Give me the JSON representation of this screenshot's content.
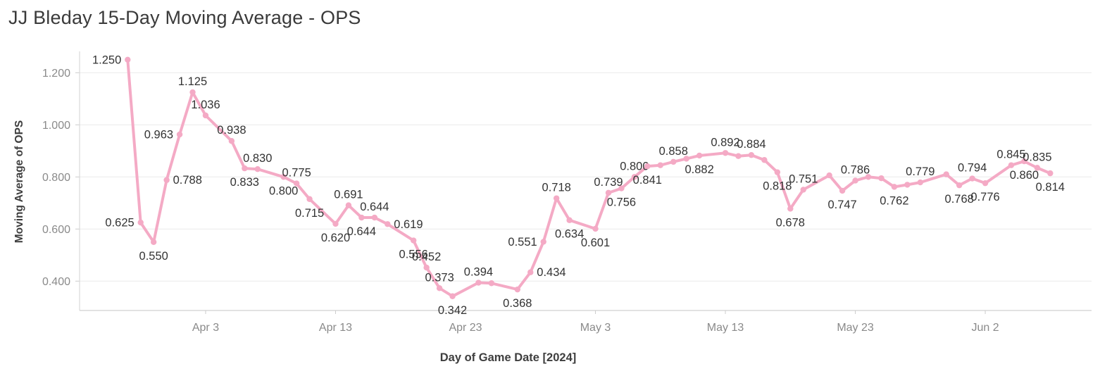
{
  "title": "JJ Bleday 15-Day Moving Average - OPS",
  "chart_data": {
    "type": "line",
    "title": "JJ Bleday 15-Day Moving Average - OPS",
    "xlabel": "Day of Game Date [2024]",
    "ylabel": "Moving Average of OPS",
    "legend": "none",
    "grid": "horizontal",
    "x_domain_days": [
      -3.7,
      74.18
    ],
    "y_domain": [
      0.2873,
      1.2765
    ],
    "colors": {
      "series": "#f4aac5",
      "marker": "#f4aac5",
      "data_label": "#333333",
      "tick_text": "#8a8a8a",
      "axis_title": "#3e3e3e",
      "chart_title": "#3a3a3a",
      "grid": "#ededed",
      "axis_line": "#d8d8d8",
      "tick_mark": "#cccccc"
    },
    "y_ticks": [
      {
        "value": 0.4,
        "label": "0.400"
      },
      {
        "value": 0.6,
        "label": "0.600"
      },
      {
        "value": 0.8,
        "label": "0.800"
      },
      {
        "value": 1.0,
        "label": "1.000"
      },
      {
        "value": 1.2,
        "label": "1.200"
      }
    ],
    "x_ticks": [
      {
        "day": 6,
        "label": "Apr 3"
      },
      {
        "day": 16,
        "label": "Apr 13"
      },
      {
        "day": 26,
        "label": "Apr 23"
      },
      {
        "day": 36,
        "label": "May 3"
      },
      {
        "day": 46,
        "label": "May 13"
      },
      {
        "day": 56,
        "label": "May 23"
      },
      {
        "day": 66,
        "label": "Jun 2"
      }
    ],
    "points": [
      {
        "day": 0,
        "date": "Mar 28",
        "value": 1.25,
        "label": "1.250",
        "label_pos": "left"
      },
      {
        "day": 1,
        "date": "Mar 29",
        "value": 0.625,
        "label": "0.625",
        "label_pos": "left"
      },
      {
        "day": 2,
        "date": "Mar 30",
        "value": 0.55,
        "label": "0.550",
        "label_pos": "below"
      },
      {
        "day": 3,
        "date": "Mar 31",
        "value": 0.788,
        "label": "0.788",
        "label_pos": "right"
      },
      {
        "day": 4,
        "date": "Apr 1",
        "value": 0.963,
        "label": "0.963",
        "label_pos": "left"
      },
      {
        "day": 5,
        "date": "Apr 2",
        "value": 1.125,
        "label": "1.125",
        "label_pos": "above"
      },
      {
        "day": 6,
        "date": "Apr 3",
        "value": 1.036,
        "label": "1.036",
        "label_pos": "above"
      },
      {
        "day": 8,
        "date": "Apr 5",
        "value": 0.938,
        "label": "0.938",
        "label_pos": "above"
      },
      {
        "day": 9,
        "date": "Apr 6",
        "value": 0.833,
        "label": "0.833",
        "label_pos": "below"
      },
      {
        "day": 10,
        "date": "Apr 7",
        "value": 0.83,
        "label": "0.830",
        "label_pos": "above"
      },
      {
        "day": 12,
        "date": "Apr 9",
        "value": 0.8,
        "label": "0.800",
        "label_pos": "below"
      },
      {
        "day": 13,
        "date": "Apr 10",
        "value": 0.775,
        "label": "0.775",
        "label_pos": "above"
      },
      {
        "day": 14,
        "date": "Apr 11",
        "value": 0.715,
        "label": "0.715",
        "label_pos": "below"
      },
      {
        "day": 16,
        "date": "Apr 13",
        "value": 0.62,
        "label": "0.620",
        "label_pos": "below"
      },
      {
        "day": 17,
        "date": "Apr 14",
        "value": 0.691,
        "label": "0.691",
        "label_pos": "above"
      },
      {
        "day": 18,
        "date": "Apr 15",
        "value": 0.644,
        "label": "0.644",
        "label_pos": "below"
      },
      {
        "day": 19,
        "date": "Apr 16",
        "value": 0.644,
        "label": "0.644",
        "label_pos": "above"
      },
      {
        "day": 20,
        "date": "Apr 17",
        "value": 0.619,
        "label": "0.619",
        "label_pos": "right"
      },
      {
        "day": 22,
        "date": "Apr 19",
        "value": 0.556,
        "label": "0.556",
        "label_pos": "below"
      },
      {
        "day": 23,
        "date": "Apr 20",
        "value": 0.452,
        "label": "0.452",
        "label_pos": "above"
      },
      {
        "day": 24,
        "date": "Apr 21",
        "value": 0.373,
        "label": "0.373",
        "label_pos": "above"
      },
      {
        "day": 25,
        "date": "Apr 22",
        "value": 0.342,
        "label": "0.342",
        "label_pos": "below"
      },
      {
        "day": 27,
        "date": "Apr 24",
        "value": 0.394,
        "label": "0.394",
        "label_pos": "above"
      },
      {
        "day": 28,
        "date": "Apr 25",
        "value": 0.392,
        "label": "",
        "label_pos": "above"
      },
      {
        "day": 30,
        "date": "Apr 27",
        "value": 0.368,
        "label": "0.368",
        "label_pos": "below"
      },
      {
        "day": 31,
        "date": "Apr 28",
        "value": 0.434,
        "label": "0.434",
        "label_pos": "right"
      },
      {
        "day": 32,
        "date": "Apr 29",
        "value": 0.551,
        "label": "0.551",
        "label_pos": "left"
      },
      {
        "day": 33,
        "date": "Apr 30",
        "value": 0.718,
        "label": "0.718",
        "label_pos": "above"
      },
      {
        "day": 34,
        "date": "May 1",
        "value": 0.634,
        "label": "0.634",
        "label_pos": "below"
      },
      {
        "day": 36,
        "date": "May 3",
        "value": 0.601,
        "label": "0.601",
        "label_pos": "below"
      },
      {
        "day": 37,
        "date": "May 4",
        "value": 0.739,
        "label": "0.739",
        "label_pos": "above"
      },
      {
        "day": 38,
        "date": "May 5",
        "value": 0.756,
        "label": "0.756",
        "label_pos": "below"
      },
      {
        "day": 39,
        "date": "May 6",
        "value": 0.8,
        "label": "0.800",
        "label_pos": "above"
      },
      {
        "day": 40,
        "date": "May 7",
        "value": 0.841,
        "label": "0.841",
        "label_pos": "below"
      },
      {
        "day": 41,
        "date": "May 8",
        "value": 0.845,
        "label": "",
        "label_pos": "above"
      },
      {
        "day": 42,
        "date": "May 9",
        "value": 0.858,
        "label": "0.858",
        "label_pos": "above"
      },
      {
        "day": 43,
        "date": "May 10",
        "value": 0.87,
        "label": "",
        "label_pos": "above"
      },
      {
        "day": 44,
        "date": "May 11",
        "value": 0.882,
        "label": "0.882",
        "label_pos": "below"
      },
      {
        "day": 46,
        "date": "May 13",
        "value": 0.892,
        "label": "0.892",
        "label_pos": "above"
      },
      {
        "day": 47,
        "date": "May 14",
        "value": 0.88,
        "label": "",
        "label_pos": "above"
      },
      {
        "day": 48,
        "date": "May 15",
        "value": 0.884,
        "label": "0.884",
        "label_pos": "above"
      },
      {
        "day": 49,
        "date": "May 16",
        "value": 0.865,
        "label": "",
        "label_pos": "above"
      },
      {
        "day": 50,
        "date": "May 17",
        "value": 0.818,
        "label": "0.818",
        "label_pos": "below"
      },
      {
        "day": 51,
        "date": "May 18",
        "value": 0.678,
        "label": "0.678",
        "label_pos": "below"
      },
      {
        "day": 52,
        "date": "May 19",
        "value": 0.751,
        "label": "0.751",
        "label_pos": "above"
      },
      {
        "day": 54,
        "date": "May 21",
        "value": 0.806,
        "label": "",
        "label_pos": "above"
      },
      {
        "day": 55,
        "date": "May 22",
        "value": 0.747,
        "label": "0.747",
        "label_pos": "below"
      },
      {
        "day": 56,
        "date": "May 23",
        "value": 0.786,
        "label": "0.786",
        "label_pos": "above"
      },
      {
        "day": 57,
        "date": "May 24",
        "value": 0.8,
        "label": "",
        "label_pos": "above"
      },
      {
        "day": 58,
        "date": "May 25",
        "value": 0.795,
        "label": "",
        "label_pos": "above"
      },
      {
        "day": 59,
        "date": "May 26",
        "value": 0.762,
        "label": "0.762",
        "label_pos": "below"
      },
      {
        "day": 60,
        "date": "May 27",
        "value": 0.77,
        "label": "",
        "label_pos": "above"
      },
      {
        "day": 61,
        "date": "May 28",
        "value": 0.779,
        "label": "0.779",
        "label_pos": "above"
      },
      {
        "day": 63,
        "date": "May 30",
        "value": 0.81,
        "label": "",
        "label_pos": "above"
      },
      {
        "day": 64,
        "date": "May 31",
        "value": 0.768,
        "label": "0.768",
        "label_pos": "below"
      },
      {
        "day": 65,
        "date": "Jun 1",
        "value": 0.794,
        "label": "0.794",
        "label_pos": "above"
      },
      {
        "day": 66,
        "date": "Jun 2",
        "value": 0.776,
        "label": "0.776",
        "label_pos": "below"
      },
      {
        "day": 68,
        "date": "Jun 4",
        "value": 0.845,
        "label": "0.845",
        "label_pos": "above"
      },
      {
        "day": 69,
        "date": "Jun 5",
        "value": 0.86,
        "label": "0.860",
        "label_pos": "below"
      },
      {
        "day": 70,
        "date": "Jun 6",
        "value": 0.835,
        "label": "0.835",
        "label_pos": "above"
      },
      {
        "day": 71,
        "date": "Jun 7",
        "value": 0.814,
        "label": "0.814",
        "label_pos": "below"
      }
    ]
  }
}
